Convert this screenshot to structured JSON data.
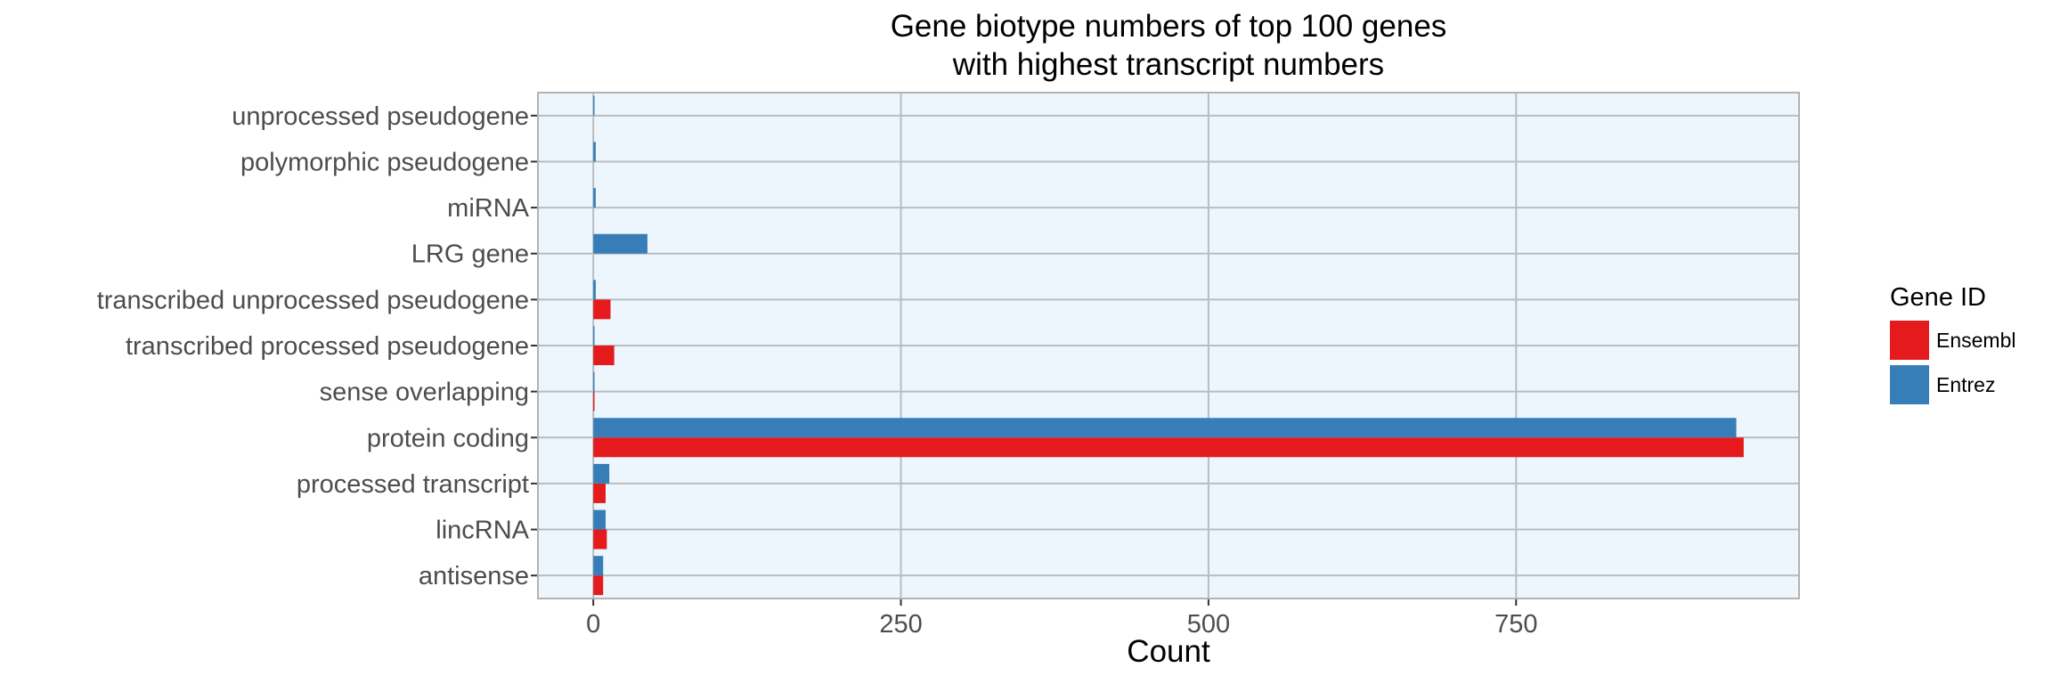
{
  "chart_data": {
    "type": "bar",
    "orientation": "horizontal",
    "title": [
      "Gene biotype numbers of top 100 genes",
      "with highest transcript numbers"
    ],
    "xlabel": "Count",
    "ylabel": "",
    "categories": [
      "antisense",
      "lincRNA",
      "processed transcript",
      "protein coding",
      "sense overlapping",
      "transcribed processed pseudogene",
      "transcribed unprocessed pseudogene",
      "LRG gene",
      "miRNA",
      "polymorphic pseudogene",
      "unprocessed pseudogene"
    ],
    "series": [
      {
        "name": "Ensembl",
        "color": "#e41a1c",
        "values": [
          8,
          11,
          10,
          935,
          1,
          17,
          14,
          0,
          0,
          0,
          0
        ]
      },
      {
        "name": "Entrez",
        "color": "#377eb8",
        "values": [
          8,
          10,
          13,
          929,
          1,
          1,
          2,
          44,
          2,
          2,
          1
        ]
      }
    ],
    "xlim": [
      -45,
      980
    ],
    "xticks": [
      0,
      250,
      500,
      750
    ],
    "xtick_labels": [
      "0",
      "250",
      "500",
      "750"
    ],
    "grid": true,
    "panel_background": "#eef6fd",
    "grid_color": "#b8bdc2",
    "legend": {
      "title": "Gene ID",
      "position": "right"
    }
  }
}
